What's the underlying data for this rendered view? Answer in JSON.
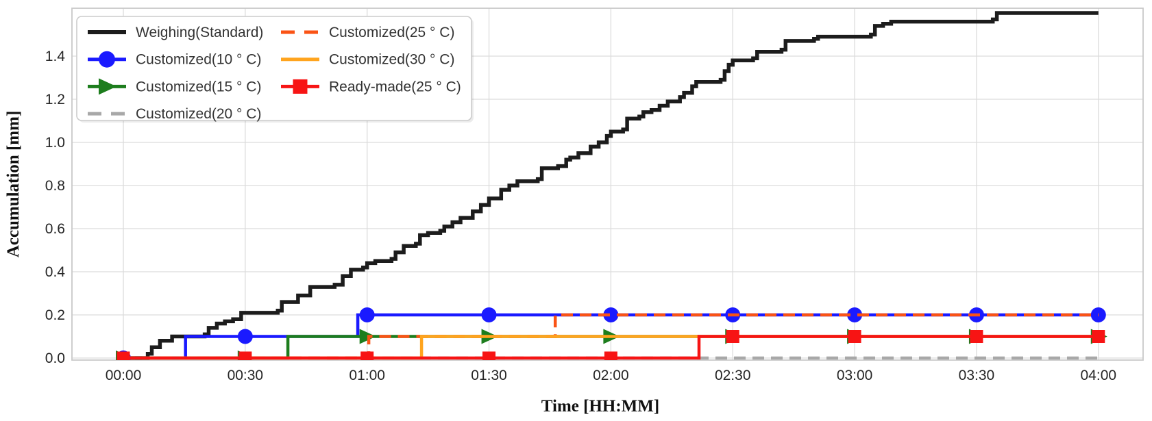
{
  "chart_data": {
    "type": "line",
    "subtype": "step-after",
    "title": "",
    "xlabel": "Time [HH:MM]",
    "ylabel": "Accumulation [mm]",
    "x_unit_note": "x values in minutes after 00:00",
    "grid": true,
    "legend_position": "upper-left",
    "x_tick_minutes": [
      0,
      30,
      60,
      90,
      120,
      150,
      180,
      210,
      240
    ],
    "x_tick_labels": [
      "00:00",
      "00:30",
      "01:00",
      "01:30",
      "02:00",
      "02:30",
      "03:00",
      "03:30",
      "04:00"
    ],
    "y_tick_values": [
      0.0,
      0.2,
      0.4,
      0.6,
      0.8,
      1.0,
      1.2,
      1.4
    ],
    "y_tick_labels": [
      "0.0",
      "0.2",
      "0.4",
      "0.6",
      "0.8",
      "1.0",
      "1.2",
      "1.4"
    ],
    "xlim_minutes": [
      -13,
      251
    ],
    "ylim": [
      0,
      1.62
    ],
    "marker_interval_minutes": 30,
    "series": [
      {
        "name": "Weighing(Standard)",
        "color": "#1c1c1c",
        "line": "solid",
        "width": 5.5,
        "marker": "none",
        "legend_col": 0,
        "legend_row": 0,
        "points": [
          [
            0,
            0
          ],
          [
            6,
            0.02
          ],
          [
            7,
            0.05
          ],
          [
            9,
            0.08
          ],
          [
            12,
            0.1
          ],
          [
            20,
            0.11
          ],
          [
            21,
            0.14
          ],
          [
            23,
            0.16
          ],
          [
            25,
            0.17
          ],
          [
            27,
            0.18
          ],
          [
            29,
            0.21
          ],
          [
            38,
            0.22
          ],
          [
            39,
            0.26
          ],
          [
            43,
            0.29
          ],
          [
            46,
            0.33
          ],
          [
            52,
            0.34
          ],
          [
            54,
            0.38
          ],
          [
            56,
            0.41
          ],
          [
            59,
            0.42
          ],
          [
            60,
            0.44
          ],
          [
            62,
            0.45
          ],
          [
            66,
            0.46
          ],
          [
            67,
            0.49
          ],
          [
            69,
            0.52
          ],
          [
            72,
            0.53
          ],
          [
            73,
            0.57
          ],
          [
            75,
            0.58
          ],
          [
            78,
            0.59
          ],
          [
            79,
            0.61
          ],
          [
            81,
            0.63
          ],
          [
            83,
            0.65
          ],
          [
            86,
            0.68
          ],
          [
            88,
            0.71
          ],
          [
            90,
            0.74
          ],
          [
            93,
            0.78
          ],
          [
            95,
            0.8
          ],
          [
            97,
            0.82
          ],
          [
            102,
            0.83
          ],
          [
            103,
            0.88
          ],
          [
            107,
            0.89
          ],
          [
            109,
            0.92
          ],
          [
            110,
            0.93
          ],
          [
            112,
            0.95
          ],
          [
            115,
            0.98
          ],
          [
            117,
            1.0
          ],
          [
            119,
            1.03
          ],
          [
            120,
            1.05
          ],
          [
            123,
            1.06
          ],
          [
            124,
            1.11
          ],
          [
            127,
            1.12
          ],
          [
            128,
            1.14
          ],
          [
            130,
            1.15
          ],
          [
            132,
            1.17
          ],
          [
            134,
            1.19
          ],
          [
            137,
            1.21
          ],
          [
            138,
            1.23
          ],
          [
            140,
            1.26
          ],
          [
            141,
            1.28
          ],
          [
            147,
            1.29
          ],
          [
            148,
            1.33
          ],
          [
            149,
            1.36
          ],
          [
            150,
            1.38
          ],
          [
            155,
            1.39
          ],
          [
            156,
            1.42
          ],
          [
            162,
            1.43
          ],
          [
            163,
            1.47
          ],
          [
            170,
            1.48
          ],
          [
            171,
            1.49
          ],
          [
            184,
            1.5
          ],
          [
            185,
            1.54
          ],
          [
            187,
            1.55
          ],
          [
            189,
            1.56
          ],
          [
            214,
            1.57
          ],
          [
            215,
            1.6
          ],
          [
            240,
            1.6
          ]
        ]
      },
      {
        "name": "Customized(10 ° C)",
        "color": "#1a1aff",
        "line": "solid",
        "width": 4.5,
        "marker": "circle",
        "marker_times": [
          0,
          30,
          60,
          90,
          120,
          150,
          180,
          210,
          240
        ],
        "legend_col": 0,
        "legend_row": 1,
        "points": [
          [
            0,
            0
          ],
          [
            15.3,
            0.1
          ],
          [
            57.7,
            0.2
          ],
          [
            240,
            0.2
          ]
        ]
      },
      {
        "name": "Customized(15 ° C)",
        "color": "#1d7d1d",
        "line": "solid",
        "width": 4.5,
        "marker": "triangle-right",
        "marker_times": [
          0,
          30,
          60,
          90,
          120,
          150,
          180,
          210,
          240
        ],
        "legend_col": 0,
        "legend_row": 2,
        "points": [
          [
            0,
            0
          ],
          [
            40.5,
            0.1
          ],
          [
            240,
            0.1
          ]
        ]
      },
      {
        "name": "Customized(20 ° C)",
        "color": "#a8a8a8",
        "line": "dashed",
        "width": 4.5,
        "marker": "none",
        "legend_col": 0,
        "legend_row": 3,
        "points": [
          [
            0,
            0
          ],
          [
            240,
            0
          ]
        ]
      },
      {
        "name": "Customized(25 ° C)",
        "color": "#fa5315",
        "line": "dashed",
        "width": 4.5,
        "marker": "none",
        "legend_col": 1,
        "legend_row": 0,
        "points": [
          [
            0,
            0
          ],
          [
            60.4,
            0.1
          ],
          [
            106.3,
            0.2
          ],
          [
            240,
            0.2
          ]
        ]
      },
      {
        "name": "Customized(30 ° C)",
        "color": "#ffa41e",
        "line": "solid",
        "width": 4.5,
        "marker": "none",
        "legend_col": 1,
        "legend_row": 1,
        "points": [
          [
            0,
            0
          ],
          [
            73.4,
            0.1
          ],
          [
            240,
            0.1
          ]
        ]
      },
      {
        "name": "Ready-made(25 ° C)",
        "color": "#f71414",
        "line": "solid",
        "width": 4.5,
        "marker": "square",
        "marker_times": [
          0,
          30,
          60,
          90,
          120,
          150,
          180,
          210,
          240
        ],
        "legend_col": 1,
        "legend_row": 2,
        "points": [
          [
            0,
            0
          ],
          [
            141.7,
            0.1
          ],
          [
            240,
            0.1
          ]
        ]
      }
    ]
  }
}
